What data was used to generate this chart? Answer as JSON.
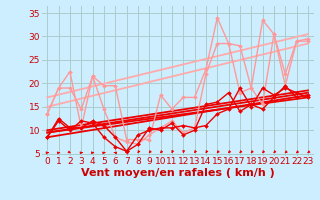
{
  "bg_color": "#cceeff",
  "grid_color": "#aacccc",
  "xlabel": "Vent moyen/en rafales ( km/h )",
  "xlabel_color": "#cc0000",
  "xlabel_fontsize": 8,
  "tick_color": "#cc0000",
  "tick_fontsize": 6.5,
  "xlim": [
    -0.5,
    23.5
  ],
  "ylim": [
    4.5,
    36.5
  ],
  "yticks": [
    5,
    10,
    15,
    20,
    25,
    30,
    35
  ],
  "xticks": [
    0,
    1,
    2,
    3,
    4,
    5,
    6,
    7,
    8,
    9,
    10,
    11,
    12,
    13,
    14,
    15,
    16,
    17,
    18,
    19,
    20,
    21,
    22,
    23
  ],
  "series": [
    {
      "x": [
        0,
        1,
        2,
        3,
        4,
        5,
        6,
        7,
        8,
        9,
        10,
        11,
        12,
        13,
        14,
        15,
        16,
        17,
        18,
        19,
        20,
        21,
        22,
        23
      ],
      "y": [
        8.5,
        12.5,
        10.5,
        10.5,
        12.0,
        11.0,
        8.5,
        5.5,
        9.0,
        10.0,
        10.5,
        10.5,
        11.0,
        10.5,
        11.0,
        13.5,
        14.5,
        19.0,
        15.0,
        19.0,
        17.5,
        19.0,
        18.0,
        17.0
      ],
      "color": "#ee0000",
      "lw": 1.0,
      "marker": "D",
      "ms": 2.0,
      "zorder": 5
    },
    {
      "x": [
        0,
        1,
        2,
        3,
        4,
        5,
        6,
        7,
        8,
        9,
        10,
        11,
        12,
        13,
        14,
        15,
        16,
        17,
        18,
        19,
        20,
        21,
        22,
        23
      ],
      "y": [
        8.5,
        12.0,
        10.0,
        12.0,
        11.5,
        8.5,
        6.5,
        5.5,
        7.0,
        10.5,
        10.0,
        11.5,
        9.0,
        10.0,
        15.5,
        16.0,
        18.0,
        14.0,
        15.5,
        14.5,
        17.0,
        19.5,
        17.0,
        17.5
      ],
      "color": "#ee0000",
      "lw": 1.0,
      "marker": "D",
      "ms": 2.0,
      "zorder": 5
    },
    {
      "x": [
        0,
        1,
        2,
        3,
        4,
        5,
        6,
        7,
        8,
        9,
        10,
        11,
        12,
        13,
        14,
        15,
        16,
        17,
        18,
        19,
        20,
        21,
        22,
        23
      ],
      "y": [
        13.5,
        19.0,
        22.5,
        10.5,
        21.5,
        19.5,
        19.5,
        8.0,
        8.0,
        8.0,
        17.5,
        14.5,
        17.0,
        17.0,
        23.0,
        34.0,
        28.5,
        18.0,
        19.0,
        15.5,
        30.5,
        19.5,
        29.0,
        29.5
      ],
      "color": "#ff9999",
      "lw": 1.0,
      "marker": "D",
      "ms": 2.0,
      "zorder": 4
    },
    {
      "x": [
        0,
        1,
        2,
        3,
        4,
        5,
        6,
        7,
        8,
        9,
        10,
        11,
        12,
        13,
        14,
        15,
        16,
        17,
        18,
        19,
        20,
        21,
        22,
        23
      ],
      "y": [
        13.5,
        19.0,
        19.0,
        14.5,
        21.5,
        14.5,
        8.5,
        7.5,
        7.0,
        9.0,
        10.5,
        12.0,
        9.5,
        10.5,
        22.0,
        28.5,
        28.5,
        28.0,
        19.0,
        33.5,
        30.5,
        22.0,
        29.0,
        29.0
      ],
      "color": "#ff9999",
      "lw": 1.0,
      "marker": "D",
      "ms": 2.0,
      "zorder": 4
    },
    {
      "x": [
        0,
        23
      ],
      "y": [
        8.5,
        17.5
      ],
      "color": "#ee0000",
      "lw": 1.3,
      "marker": null,
      "ms": 0,
      "zorder": 3
    },
    {
      "x": [
        0,
        23
      ],
      "y": [
        9.5,
        18.0
      ],
      "color": "#ee0000",
      "lw": 1.3,
      "marker": null,
      "ms": 0,
      "zorder": 3
    },
    {
      "x": [
        0,
        23
      ],
      "y": [
        9.5,
        17.0
      ],
      "color": "#ee0000",
      "lw": 1.3,
      "marker": null,
      "ms": 0,
      "zorder": 3
    },
    {
      "x": [
        0,
        23
      ],
      "y": [
        10.0,
        18.5
      ],
      "color": "#ee0000",
      "lw": 1.3,
      "marker": null,
      "ms": 0,
      "zorder": 3
    },
    {
      "x": [
        0,
        23
      ],
      "y": [
        15.0,
        28.5
      ],
      "color": "#ffaaaa",
      "lw": 1.3,
      "marker": null,
      "ms": 0,
      "zorder": 2
    },
    {
      "x": [
        0,
        23
      ],
      "y": [
        17.0,
        30.5
      ],
      "color": "#ffaaaa",
      "lw": 1.3,
      "marker": null,
      "ms": 0,
      "zorder": 2
    }
  ],
  "wind_arrows_x": [
    0,
    1,
    2,
    3,
    4,
    5,
    6,
    7,
    8,
    9,
    10,
    11,
    12,
    13,
    14,
    15,
    16,
    17,
    18,
    19,
    20,
    21,
    22,
    23
  ],
  "wind_arrows_angles_deg": [
    80,
    70,
    145,
    80,
    85,
    70,
    295,
    310,
    195,
    200,
    200,
    190,
    185,
    195,
    195,
    200,
    200,
    200,
    200,
    200,
    200,
    205,
    205,
    205
  ]
}
